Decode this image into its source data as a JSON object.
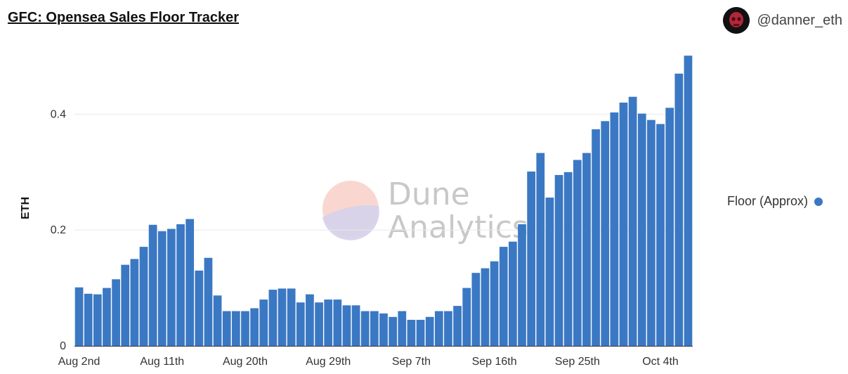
{
  "header": {
    "title": "GFC: Opensea Sales Floor Tracker"
  },
  "author": {
    "name": "@danner_eth",
    "avatar_icon": "skull-avatar-icon"
  },
  "watermark": {
    "line1": "Dune",
    "line2": "Analytics"
  },
  "legend": {
    "label": "Floor (Approx)",
    "color": "#3b78c4"
  },
  "chart_data": {
    "type": "bar",
    "title": "GFC: Opensea Sales Floor Tracker",
    "xlabel": "",
    "ylabel": "ETH",
    "ylim": [
      0,
      0.5
    ],
    "yticks": [
      0,
      0.2,
      0.4
    ],
    "ytick_labels": [
      "0",
      "0.2",
      "0.4"
    ],
    "grid": true,
    "legend_position": "right",
    "x_tick_labels": [
      {
        "label": "Aug 2nd",
        "index": 0
      },
      {
        "label": "Aug 11th",
        "index": 9
      },
      {
        "label": "Aug 20th",
        "index": 18
      },
      {
        "label": "Aug 29th",
        "index": 27
      },
      {
        "label": "Sep 7th",
        "index": 36
      },
      {
        "label": "Sep 16th",
        "index": 45
      },
      {
        "label": "Sep 25th",
        "index": 54
      },
      {
        "label": "Oct 4th",
        "index": 63
      }
    ],
    "series": [
      {
        "name": "Floor (Approx)",
        "color": "#3b78c4",
        "values": [
          0.101,
          0.09,
          0.089,
          0.1,
          0.115,
          0.14,
          0.15,
          0.171,
          0.209,
          0.198,
          0.202,
          0.21,
          0.219,
          0.13,
          0.152,
          0.087,
          0.06,
          0.06,
          0.06,
          0.065,
          0.08,
          0.097,
          0.099,
          0.099,
          0.075,
          0.089,
          0.075,
          0.08,
          0.08,
          0.07,
          0.07,
          0.06,
          0.06,
          0.056,
          0.05,
          0.06,
          0.045,
          0.045,
          0.05,
          0.06,
          0.06,
          0.069,
          0.1,
          0.126,
          0.134,
          0.146,
          0.171,
          0.18,
          0.21,
          0.301,
          0.333,
          0.256,
          0.295,
          0.3,
          0.321,
          0.333,
          0.374,
          0.388,
          0.403,
          0.42,
          0.43,
          0.401,
          0.39,
          0.383,
          0.411,
          0.47,
          0.501
        ]
      }
    ]
  }
}
